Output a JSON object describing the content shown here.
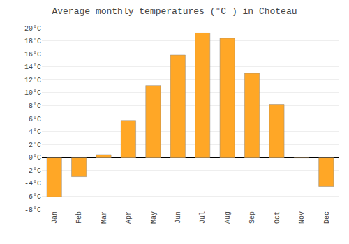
{
  "chart_data": {
    "type": "bar",
    "title": "Average monthly temperatures (°C ) in Choteau",
    "categories": [
      "Jan",
      "Feb",
      "Mar",
      "Apr",
      "May",
      "Jun",
      "Jul",
      "Aug",
      "Sep",
      "Oct",
      "Nov",
      "Dec"
    ],
    "values": [
      -6.1,
      -3.0,
      0.4,
      5.7,
      11.1,
      15.8,
      19.2,
      18.4,
      13.0,
      8.2,
      -0.1,
      -4.5
    ],
    "color": "#FFA726",
    "ylim": [
      -8,
      20
    ],
    "yticks": [
      {
        "value": -8,
        "label": "-8°C"
      },
      {
        "value": -6,
        "label": "-6°C"
      },
      {
        "value": -4,
        "label": "-4°C"
      },
      {
        "value": -2,
        "label": "-2°C"
      },
      {
        "value": 0,
        "label": "0°C"
      },
      {
        "value": 2,
        "label": "2°C"
      },
      {
        "value": 4,
        "label": "4°C"
      },
      {
        "value": 6,
        "label": "6°C"
      },
      {
        "value": 8,
        "label": "8°C"
      },
      {
        "value": 10,
        "label": "10°C"
      },
      {
        "value": 12,
        "label": "12°C"
      },
      {
        "value": 14,
        "label": "14°C"
      },
      {
        "value": 16,
        "label": "16°C"
      },
      {
        "value": 18,
        "label": "18°C"
      },
      {
        "value": 20,
        "label": "20°C"
      }
    ],
    "grid": true
  }
}
